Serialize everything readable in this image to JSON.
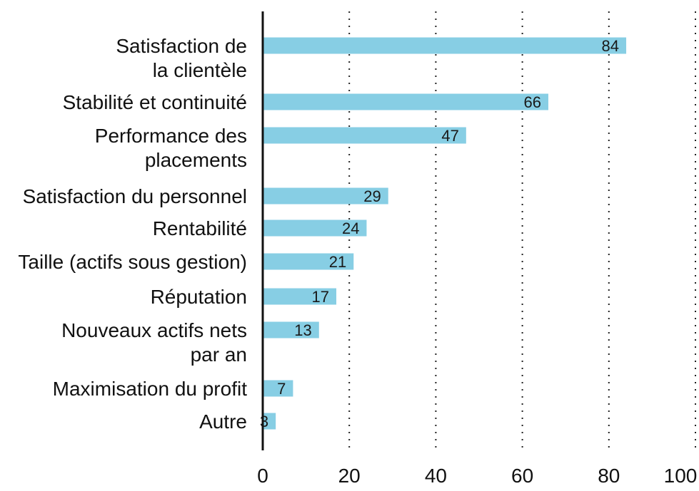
{
  "chart_data": {
    "type": "bar",
    "orientation": "horizontal",
    "title": "",
    "xlabel": "",
    "ylabel": "",
    "xlim": [
      0,
      100
    ],
    "x_ticks": [
      0,
      20,
      40,
      60,
      80,
      100
    ],
    "grid": "vertical-dotted",
    "bar_color": "#87CEE4",
    "categories": [
      [
        "Satisfaction de",
        "la clientèle"
      ],
      [
        "Stabilité et continuité"
      ],
      [
        "Performance des",
        "placements"
      ],
      [
        "Satisfaction du personnel"
      ],
      [
        "Rentabilité"
      ],
      [
        "Taille (actifs sous gestion)"
      ],
      [
        "Réputation"
      ],
      [
        "Nouveaux actifs nets",
        "par an"
      ],
      [
        "Maximisation du profit"
      ],
      [
        "Autre"
      ]
    ],
    "values": [
      84,
      66,
      47,
      29,
      24,
      21,
      17,
      13,
      7,
      3
    ]
  }
}
